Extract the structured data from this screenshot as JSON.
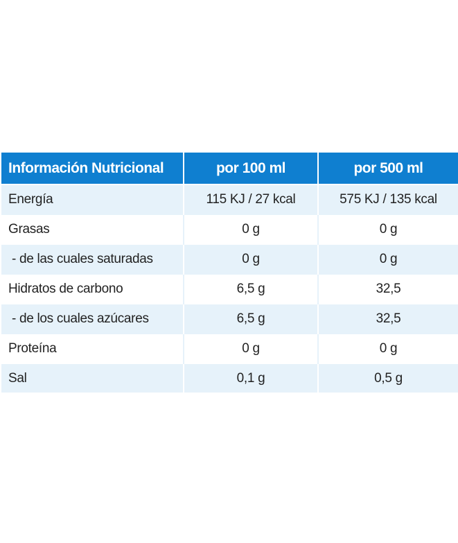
{
  "table": {
    "headers": [
      "Información Nutricional",
      "por 100 ml",
      "por 500 ml"
    ],
    "rows": [
      {
        "label": "Energía",
        "per_100ml": "115 KJ / 27 kcal",
        "per_500ml": "575 KJ / 135 kcal"
      },
      {
        "label": "Grasas",
        "per_100ml": "0 g",
        "per_500ml": "0 g"
      },
      {
        "label": " - de las cuales saturadas",
        "per_100ml": "0 g",
        "per_500ml": "0 g"
      },
      {
        "label": "Hidratos de carbono",
        "per_100ml": "6,5 g",
        "per_500ml": "32,5"
      },
      {
        "label": " - de los cuales azúcares",
        "per_100ml": "6,5 g",
        "per_500ml": "32,5"
      },
      {
        "label": "Proteína",
        "per_100ml": "0 g",
        "per_500ml": "0 g"
      },
      {
        "label": "Sal",
        "per_100ml": "0,1 g",
        "per_500ml": "0,5 g"
      }
    ]
  },
  "colors": {
    "header_bg": "#0f7fd0",
    "header_text": "#ffffff",
    "row_alt_bg": "#e6f2fa",
    "text": "#222222"
  }
}
